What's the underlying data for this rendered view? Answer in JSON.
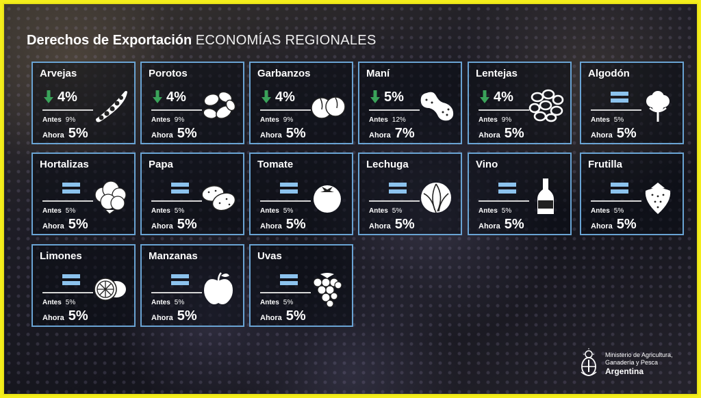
{
  "title": {
    "bold": "Derechos de Exportación",
    "regular": "ECONOMÍAS REGIONALES"
  },
  "labels": {
    "before": "Antes",
    "now": "Ahora"
  },
  "colors": {
    "border": "#6aa4d4",
    "down_arrow": "#3aa35a",
    "equal_sign": "#8cc3ee",
    "frame": "#f4ee1c"
  },
  "cards": [
    {
      "name": "Arvejas",
      "change": "down",
      "new_rate": "4%",
      "antes": "9%",
      "ahora": "5%",
      "icon": "pea-pod-icon"
    },
    {
      "name": "Porotos",
      "change": "down",
      "new_rate": "4%",
      "antes": "9%",
      "ahora": "5%",
      "icon": "beans-icon"
    },
    {
      "name": "Garbanzos",
      "change": "down",
      "new_rate": "4%",
      "antes": "9%",
      "ahora": "5%",
      "icon": "chickpeas-icon"
    },
    {
      "name": "Maní",
      "change": "down",
      "new_rate": "5%",
      "antes": "12%",
      "ahora": "7%",
      "icon": "peanut-icon"
    },
    {
      "name": "Lentejas",
      "change": "down",
      "new_rate": "4%",
      "antes": "9%",
      "ahora": "5%",
      "icon": "lentils-icon"
    },
    {
      "name": "Algodón",
      "change": "equal",
      "new_rate": "",
      "antes": "5%",
      "ahora": "5%",
      "icon": "cotton-icon"
    },
    {
      "name": "Hortalizas",
      "change": "equal",
      "new_rate": "",
      "antes": "5%",
      "ahora": "5%",
      "icon": "cauliflower-icon"
    },
    {
      "name": "Papa",
      "change": "equal",
      "new_rate": "",
      "antes": "5%",
      "ahora": "5%",
      "icon": "potato-icon"
    },
    {
      "name": "Tomate",
      "change": "equal",
      "new_rate": "",
      "antes": "5%",
      "ahora": "5%",
      "icon": "tomato-icon"
    },
    {
      "name": "Lechuga",
      "change": "equal",
      "new_rate": "",
      "antes": "5%",
      "ahora": "5%",
      "icon": "lettuce-icon"
    },
    {
      "name": "Vino",
      "change": "equal",
      "new_rate": "",
      "antes": "5%",
      "ahora": "5%",
      "icon": "wine-bottle-icon"
    },
    {
      "name": "Frutilla",
      "change": "equal",
      "new_rate": "",
      "antes": "5%",
      "ahora": "5%",
      "icon": "strawberry-icon"
    },
    {
      "name": "Limones",
      "change": "equal",
      "new_rate": "",
      "antes": "5%",
      "ahora": "5%",
      "icon": "lemon-icon"
    },
    {
      "name": "Manzanas",
      "change": "equal",
      "new_rate": "",
      "antes": "5%",
      "ahora": "5%",
      "icon": "apple-icon"
    },
    {
      "name": "Uvas",
      "change": "equal",
      "new_rate": "",
      "antes": "5%",
      "ahora": "5%",
      "icon": "grapes-icon"
    }
  ],
  "footer": {
    "line1": "Ministerio de Agricultura,",
    "line2": "Ganadería y Pesca",
    "line3": "Argentina",
    "icon": "national-seal-icon"
  }
}
